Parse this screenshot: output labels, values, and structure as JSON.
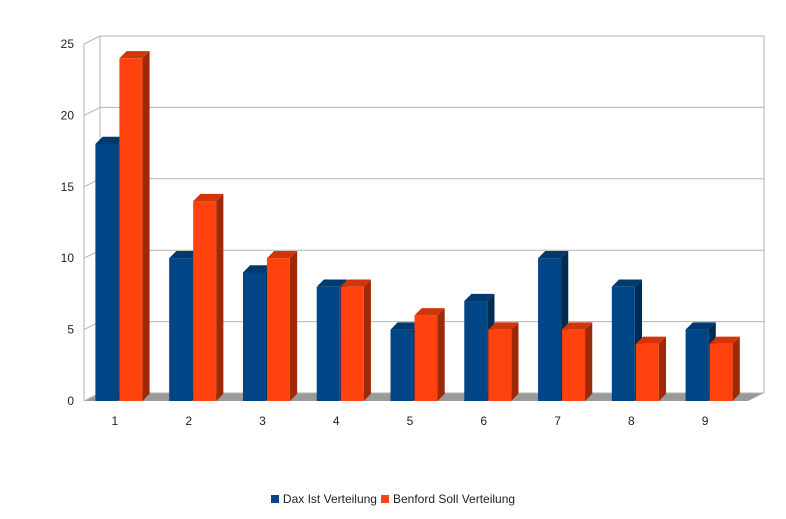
{
  "chart_data": {
    "type": "bar",
    "style": "3d-clustered",
    "categories": [
      "1",
      "2",
      "3",
      "4",
      "5",
      "6",
      "7",
      "8",
      "9"
    ],
    "series": [
      {
        "name": "Dax Ist Verteilung",
        "color": "#004586",
        "values": [
          18,
          10,
          9,
          8,
          5,
          7,
          10,
          8,
          5
        ]
      },
      {
        "name": "Benford Soll Verteilung",
        "color": "#ff420e",
        "values": [
          24,
          14,
          10,
          8,
          6,
          5,
          5,
          4,
          4
        ]
      }
    ],
    "title": "",
    "xlabel": "",
    "ylabel": "",
    "ylim": [
      0,
      25
    ],
    "yticks": [
      0,
      5,
      10,
      15,
      20,
      25
    ],
    "grid": true,
    "legend": "bottom"
  }
}
